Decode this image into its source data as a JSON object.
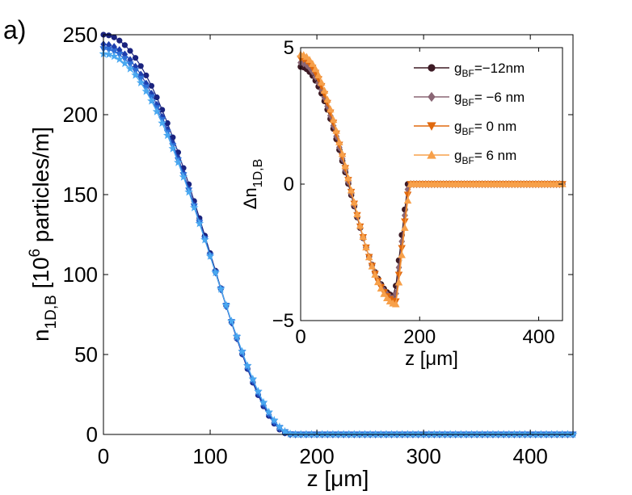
{
  "panel_label": "a)",
  "chart_data": [
    {
      "type": "line",
      "title": "",
      "xlabel": "z [μm]",
      "ylabel": {
        "base": "n",
        "sub": "1D,B",
        "rest1": " [10",
        "sup": "6",
        "rest2": " particles/m]"
      },
      "xlim": [
        0,
        440
      ],
      "ylim": [
        0,
        250
      ],
      "xticks": [
        0,
        100,
        200,
        300,
        400
      ],
      "yticks": [
        0,
        50,
        100,
        150,
        200,
        250
      ],
      "grid": false,
      "series": [
        {
          "name": "g_BF=-12nm",
          "color": "#1a237e",
          "marker": "circle",
          "profile": {
            "n0": 250,
            "R": 175
          }
        },
        {
          "name": "g_BF=-6nm",
          "color": "#1e3fae",
          "marker": "diamond",
          "profile": {
            "n0": 244,
            "R": 176
          }
        },
        {
          "name": "g_BF=0nm",
          "color": "#2f6fd6",
          "marker": "triangle-down",
          "profile": {
            "n0": 241,
            "R": 177
          }
        },
        {
          "name": "g_BF=6nm",
          "color": "#4aa8f0",
          "marker": "star",
          "profile": {
            "n0": 238,
            "R": 178
          }
        }
      ]
    },
    {
      "type": "line",
      "title": "",
      "inset": true,
      "xlabel": "z [μm]",
      "ylabel": {
        "base": "Δn",
        "sub": "1D,B"
      },
      "xlim": [
        0,
        440
      ],
      "ylim": [
        -5,
        5
      ],
      "xticks": [
        0,
        200,
        400
      ],
      "yticks": [
        -5,
        0,
        5
      ],
      "legend_position": "top-right",
      "series": [
        {
          "name": "g_BF=-12nm",
          "legend": {
            "base": "g",
            "sub": "BF",
            "value": "=−12nm"
          },
          "color": "#3d1a24",
          "line_color": "#3d1a24",
          "marker": "circle",
          "profile": {
            "a": 4.3,
            "zmin": 158,
            "vmin": -4.1,
            "zend": 180
          }
        },
        {
          "name": "g_BF=-6nm",
          "legend": {
            "base": "g",
            "sub": "BF",
            "value": "= −6 nm"
          },
          "color": "#8a6675",
          "line_color": "#8a6675",
          "marker": "diamond",
          "profile": {
            "a": 4.45,
            "zmin": 159,
            "vmin": -4.2,
            "zend": 181
          }
        },
        {
          "name": "g_BF=0nm",
          "legend": {
            "base": "g",
            "sub": "BF",
            "value": "=  0 nm"
          },
          "color": "#e0690e",
          "line_color": "#e0690e",
          "marker": "triangle-down",
          "profile": {
            "a": 4.6,
            "zmin": 160,
            "vmin": -4.3,
            "zend": 182
          }
        },
        {
          "name": "g_BF=6nm",
          "legend": {
            "base": "g",
            "sub": "BF",
            "value": "=  6 nm"
          },
          "color": "#f7a04a",
          "line_color": "#f7a04a",
          "marker": "triangle-up",
          "profile": {
            "a": 4.75,
            "zmin": 161,
            "vmin": -4.4,
            "zend": 183
          }
        }
      ]
    }
  ]
}
